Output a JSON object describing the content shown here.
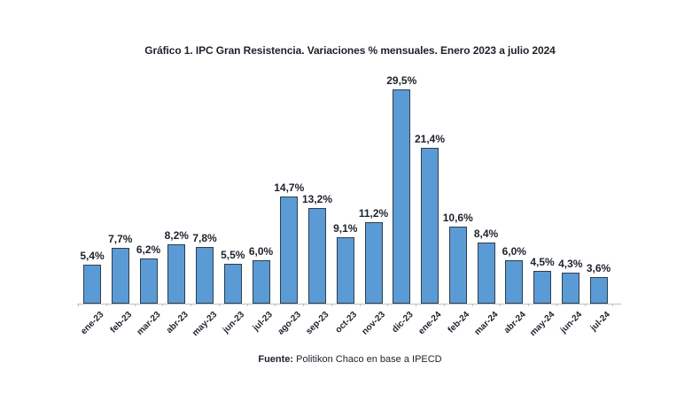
{
  "title": "Gráfico 1. IPC Gran Resistencia. Variaciones % mensuales. Enero 2023 a julio 2024",
  "source": {
    "label": "Fuente:",
    "text": " Politikon Chaco en base a IPECD"
  },
  "colors": {
    "bar_fill": "#5B9BD5",
    "bar_border": "#2E3D4D",
    "axis_line": "#BFBFBF",
    "text": "#1D222B",
    "background": "#FFFFFF"
  },
  "chart_data": {
    "type": "bar",
    "title": "Gráfico 1. IPC Gran Resistencia. Variaciones % mensuales. Enero 2023 a julio 2024",
    "categories": [
      "ene-23",
      "feb-23",
      "mar-23",
      "abr-23",
      "may-23",
      "jun-23",
      "jul-23",
      "ago-23",
      "sep-23",
      "oct-23",
      "nov-23",
      "dic-23",
      "ene-24",
      "feb-24",
      "mar-24",
      "abr-24",
      "may-24",
      "jun-24",
      "jul-24"
    ],
    "values": [
      5.4,
      7.7,
      6.2,
      8.2,
      7.8,
      5.5,
      6.0,
      14.7,
      13.2,
      9.1,
      11.2,
      29.5,
      21.4,
      10.6,
      8.4,
      6.0,
      4.5,
      4.3,
      3.6
    ],
    "value_labels": [
      "5,4%",
      "7,7%",
      "6,2%",
      "8,2%",
      "7,8%",
      "5,5%",
      "6,0%",
      "14,7%",
      "13,2%",
      "9,1%",
      "11,2%",
      "29,5%",
      "21,4%",
      "10,6%",
      "8,4%",
      "6,0%",
      "4,5%",
      "4,3%",
      "3,6%"
    ],
    "xlabel": "",
    "ylabel": "",
    "ylim": [
      0,
      30
    ],
    "grid": false,
    "legend": false,
    "x_tick_rotation": -45,
    "value_labels_position": "above"
  }
}
